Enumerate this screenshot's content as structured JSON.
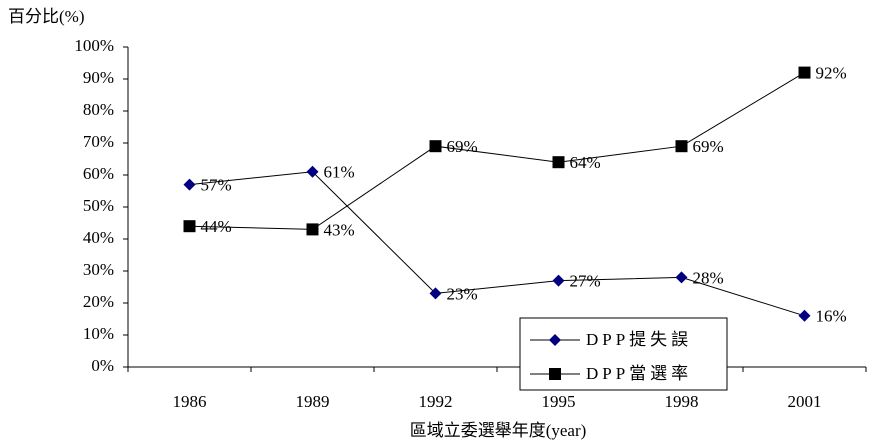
{
  "chart_data": {
    "type": "line",
    "y_axis_title": "百分比(%)",
    "x_axis_title": "區域立委選舉年度(year)",
    "categories": [
      "1986",
      "1989",
      "1992",
      "1995",
      "1998",
      "2001"
    ],
    "series": [
      {
        "name": "DPP提失誤",
        "color": "#000080",
        "marker": "diamond",
        "values": [
          57,
          61,
          23,
          27,
          28,
          16
        ],
        "value_labels": [
          "57%",
          "61%",
          "23%",
          "27%",
          "28%",
          "16%"
        ]
      },
      {
        "name": "DPP當選率",
        "color": "#000000",
        "marker": "square",
        "values": [
          44,
          43,
          69,
          64,
          69,
          92
        ],
        "value_labels": [
          "44%",
          "43%",
          "69%",
          "64%",
          "69%",
          "92%"
        ]
      }
    ],
    "ylim": [
      0,
      100
    ],
    "yticks": [
      {
        "value": 0,
        "label": "0%"
      },
      {
        "value": 10,
        "label": "10%"
      },
      {
        "value": 20,
        "label": "20%"
      },
      {
        "value": 30,
        "label": "30%"
      },
      {
        "value": 40,
        "label": "40%"
      },
      {
        "value": 50,
        "label": "50%"
      },
      {
        "value": 60,
        "label": "60%"
      },
      {
        "value": 70,
        "label": "70%"
      },
      {
        "value": 80,
        "label": "80%"
      },
      {
        "value": 90,
        "label": "90%"
      },
      {
        "value": 100,
        "label": "100%"
      }
    ],
    "legend_position": "lower right"
  }
}
